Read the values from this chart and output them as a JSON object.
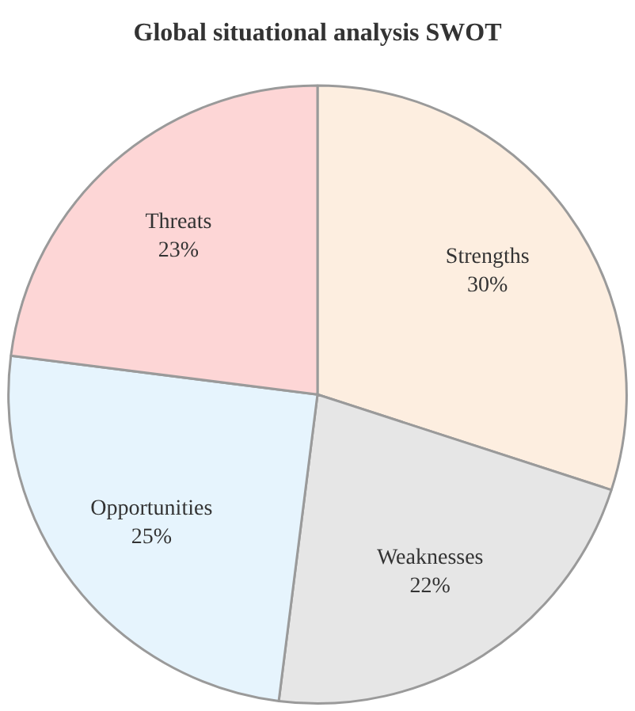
{
  "chart_data": {
    "type": "pie",
    "title": "Global situational analysis SWOT",
    "categories": [
      "Strengths",
      "Weaknesses",
      "Opportunities",
      "Threats"
    ],
    "values": [
      30,
      22,
      25,
      23
    ],
    "value_labels": [
      "30%",
      "22%",
      "25%",
      "23%"
    ],
    "colors": [
      "#fdeee0",
      "#e6e6e6",
      "#e6f4fd",
      "#fdd6d6"
    ],
    "legend": false
  }
}
